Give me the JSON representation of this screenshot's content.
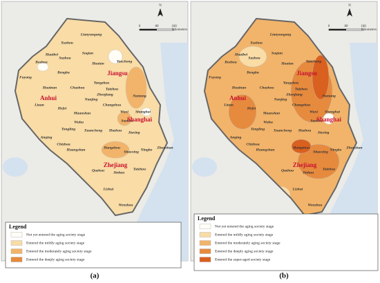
{
  "north": "N",
  "scale": {
    "ticks": [
      "0",
      "80",
      "160"
    ],
    "unit": "Kilometers"
  },
  "cities": [
    "Lianyungang",
    "Xuzhou",
    "Suqian",
    "Huaibei",
    "Bozhou",
    "Suzhou",
    "Huaian",
    "Yancheng",
    "Fuyang",
    "Bengbu",
    "Huainan",
    "Chuzhou",
    "Yangzhou",
    "Taizhou",
    "Nantong",
    "Liuan",
    "Hefei",
    "Zhenjiang",
    "Nanjing",
    "Changzhou",
    "Maanshan",
    "Wuxi",
    "Wuhu",
    "Suzhou",
    "Shanghai",
    "Tongling",
    "Xuancheng",
    "Huzhou",
    "Jiaxing",
    "Anqing",
    "Chizhou",
    "Huangshan",
    "Hangzhou",
    "Ningbo",
    "Zhoushan",
    "Shaoxing",
    "Quzhou",
    "Jinhua",
    "Taizhou",
    "Lishui",
    "Wenzhou"
  ],
  "provinces": [
    "Jiangsu",
    "Anhui",
    "Shanghai",
    "Zhejiang"
  ],
  "panels": [
    {
      "caption": "(a)",
      "legend": {
        "title": "Legend",
        "items": [
          {
            "label": "Not yet entered the aging society stage",
            "color": "#fffdf6"
          },
          {
            "label": "Entered the mildly aging society stage",
            "color": "#f9dca6"
          },
          {
            "label": "Entered the moderately aging society stage",
            "color": "#f2b46a"
          },
          {
            "label": "Entered the deeply aging society stage",
            "color": "#e68a3e"
          }
        ]
      }
    },
    {
      "caption": "(b)",
      "legend": {
        "title": "Legend",
        "items": [
          {
            "label": "Not yet entered the aging society stage",
            "color": "#fffdf6"
          },
          {
            "label": "Entered the mildly aging society stage",
            "color": "#f9dca6"
          },
          {
            "label": "Entered the moderately aging society stage",
            "color": "#f2b46a"
          },
          {
            "label": "Entered the deeply aging society stage",
            "color": "#e68a3e"
          },
          {
            "label": "Entered the super-aged society stage",
            "color": "#d9601f"
          }
        ]
      }
    }
  ]
}
